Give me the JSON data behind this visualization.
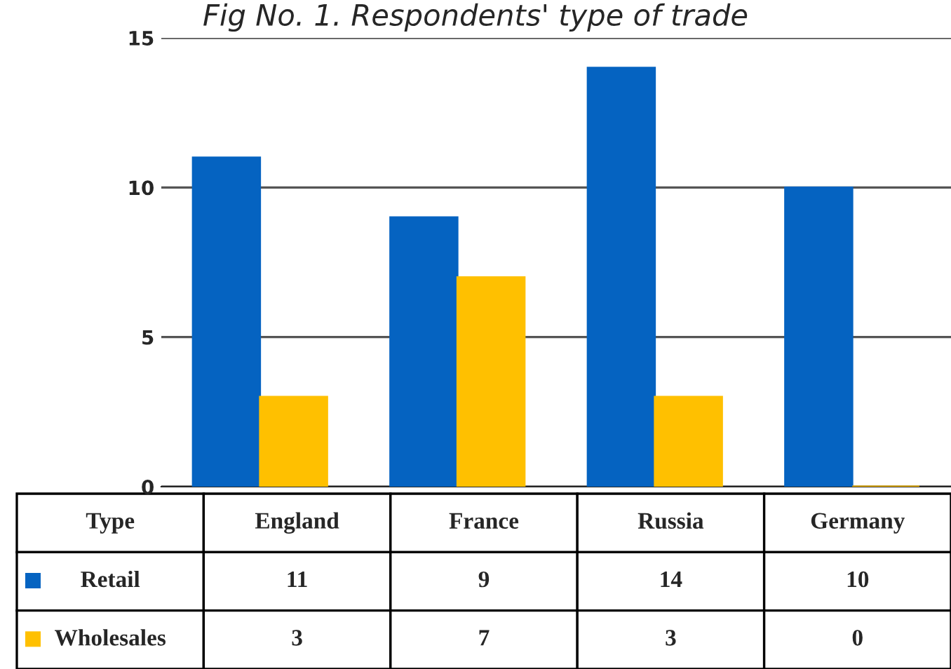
{
  "chart_data": {
    "type": "bar",
    "title": "Fig No. 1. Respondents' type of trade",
    "categories": [
      "England",
      "France",
      "Russia",
      "Germany"
    ],
    "series": [
      {
        "name": "Retail",
        "color": "#0563c1",
        "values": [
          11,
          9,
          14,
          10
        ]
      },
      {
        "name": "Wholesales",
        "color": "#ffc000",
        "values": [
          3,
          7,
          3,
          0
        ]
      }
    ],
    "ylim": [
      0,
      15
    ],
    "yticks": [
      0,
      5,
      10,
      15
    ],
    "grid": "y",
    "legend": "bottom left",
    "data_labels": true,
    "annotations": [
      "Type"
    ]
  }
}
